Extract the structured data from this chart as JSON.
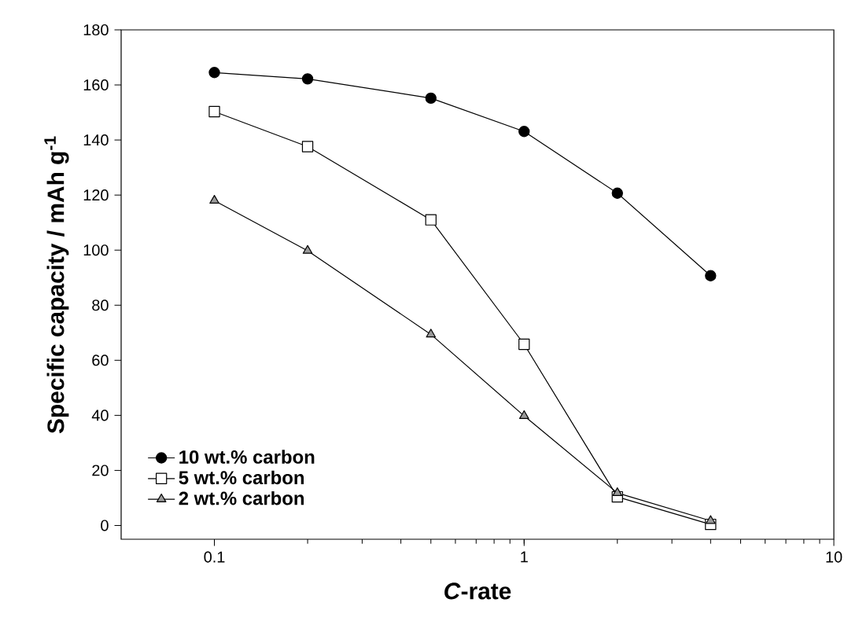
{
  "chart_data": {
    "type": "line",
    "xlabel": "*C*-rate",
    "ylabel": "Specific capacity / mAh g$^{-1}$",
    "x": [
      0.1,
      0.2,
      0.5,
      1,
      2,
      4
    ],
    "series": [
      {
        "name": "10 wt.% carbon",
        "color": "#000000",
        "marker": "circle",
        "values": [
          164.5,
          162.2,
          155.2,
          143.1,
          120.7,
          90.7
        ]
      },
      {
        "name": "5 wt.% carbon",
        "color": "#ffffff",
        "marker": "square",
        "values": [
          150.3,
          137.6,
          111,
          65.8,
          10.4,
          0.4
        ]
      },
      {
        "name": "2 wt.% carbon",
        "color": "#999999",
        "marker": "triangle",
        "values": [
          118,
          99.8,
          69.4,
          39.8,
          11.8,
          1.7
        ]
      }
    ],
    "log": "x",
    "xlim": [
      0.05,
      10
    ],
    "xticks": [
      0.1,
      1,
      10
    ],
    "ylim": [
      -5,
      180
    ],
    "yticks": [
      0,
      20,
      40,
      60,
      80,
      100,
      120,
      140,
      160,
      180
    ],
    "legend": "bottom left",
    "grid": false,
    "line_style": "solid"
  }
}
